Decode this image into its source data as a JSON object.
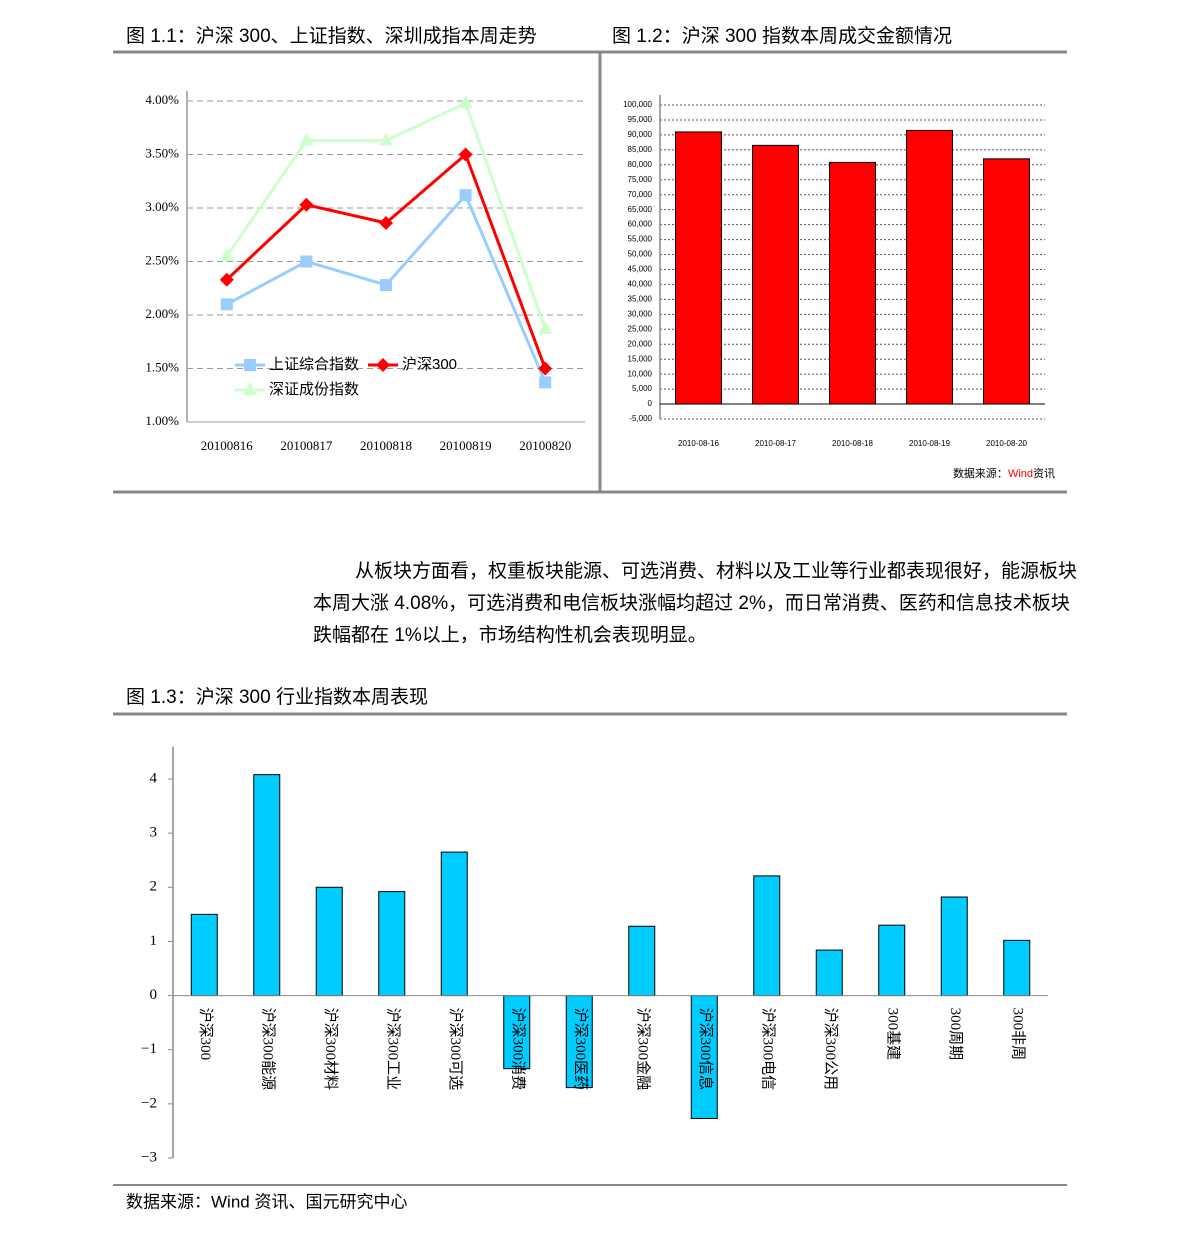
{
  "chart_data": [
    {
      "type": "line",
      "title": "图 1.1：沪深 300、上证指数、深圳成指本周走势",
      "categories": [
        "20100816",
        "20100817",
        "20100818",
        "20100819",
        "20100820"
      ],
      "series": [
        {
          "name": "上证综合指数",
          "color": "#99ccff",
          "marker": "square",
          "values": [
            2.1,
            2.5,
            2.28,
            3.12,
            1.37
          ]
        },
        {
          "name": "沪深300",
          "color": "#ff0000",
          "marker": "diamond",
          "values": [
            2.33,
            3.03,
            2.86,
            3.5,
            1.5
          ]
        },
        {
          "name": "深证成份指数",
          "color": "#ccffcc",
          "marker": "triangle",
          "values": [
            2.55,
            3.63,
            3.63,
            3.98,
            1.87
          ]
        }
      ],
      "ylim": [
        1,
        4
      ],
      "yticks": [
        {
          "value": 1,
          "label": "1.00%"
        },
        {
          "value": 1.5,
          "label": "1.50%"
        },
        {
          "value": 2,
          "label": "2.00%"
        },
        {
          "value": 2.5,
          "label": "2.50%"
        },
        {
          "value": 3,
          "label": "3.00%"
        },
        {
          "value": 3.5,
          "label": "3.50%"
        },
        {
          "value": 4,
          "label": "4.00%"
        }
      ],
      "grid": true,
      "legend": "lower left"
    },
    {
      "type": "bar",
      "title": "图 1.2：沪深 300 指数本周成交金额情况",
      "categories": [
        "2010-08-16",
        "2010-08-17",
        "2010-08-18",
        "2010-08-19",
        "2010-08-20"
      ],
      "values": [
        91000,
        86500,
        80800,
        91500,
        82000
      ],
      "color": "#ff0000",
      "ylim": [
        -5000,
        100000
      ],
      "yticks": [
        {
          "value": -5000,
          "label": "-5,000"
        },
        0,
        {
          "value": 5000,
          "label": "5,000"
        },
        {
          "value": 10000,
          "label": "10,000"
        },
        {
          "value": 15000,
          "label": "15,000"
        },
        {
          "value": 20000,
          "label": "20,000"
        },
        {
          "value": 25000,
          "label": "25,000"
        },
        {
          "value": 30000,
          "label": "30,000"
        },
        {
          "value": 35000,
          "label": "35,000"
        },
        {
          "value": 40000,
          "label": "40,000"
        },
        {
          "value": 45000,
          "label": "45,000"
        },
        {
          "value": 50000,
          "label": "50,000"
        },
        {
          "value": 55000,
          "label": "55,000"
        },
        {
          "value": 60000,
          "label": "60,000"
        },
        {
          "value": 65000,
          "label": "65,000"
        },
        {
          "value": 70000,
          "label": "70,000"
        },
        {
          "value": 75000,
          "label": "75,000"
        },
        {
          "value": 80000,
          "label": "80,000"
        },
        {
          "value": 85000,
          "label": "85,000"
        },
        {
          "value": 90000,
          "label": "90,000"
        },
        {
          "value": 95000,
          "label": "95,000"
        },
        {
          "value": 100000,
          "label": "100,000"
        }
      ],
      "grid": true,
      "source": [
        "数据来源：",
        "Wind",
        "资讯"
      ]
    },
    {
      "type": "bar",
      "title": "图 1.3：沪深 300 行业指数本周表现",
      "categories": [
        "沪深300",
        "沪深300能源",
        "沪深300材料",
        "沪深300工业",
        "沪深300可选",
        "沪深300消费",
        "沪深300医药",
        "沪深300金融",
        "沪深300信息",
        "沪深300电信",
        "沪深300公用",
        "300基建",
        "300周期",
        "300非周"
      ],
      "values": [
        1.5,
        4.08,
        2.0,
        1.92,
        2.65,
        -1.35,
        -1.7,
        1.28,
        -2.27,
        2.21,
        0.84,
        1.3,
        1.82,
        1.02
      ],
      "color": "#00ccff",
      "ylim": [
        -3,
        4.6
      ],
      "yticks": [
        {
          "value": -3,
          "label": "−3"
        },
        {
          "value": -2,
          "label": "−2"
        },
        {
          "value": -1,
          "label": "−1"
        },
        0,
        1,
        2,
        3,
        4
      ],
      "grid": false
    }
  ],
  "paragraph": "从板块方面看，权重板块能源、可选消费、材料以及工业等行业都表现很好，能源板块本周大涨 4.08%，可选消费和电信板块涨幅均超过 2%，而日常消费、医药和信息技术板块跌幅都在 1%以上，市场结构性机会表现明显。",
  "source": "数据来源：Wind  资讯、国元研究中心"
}
